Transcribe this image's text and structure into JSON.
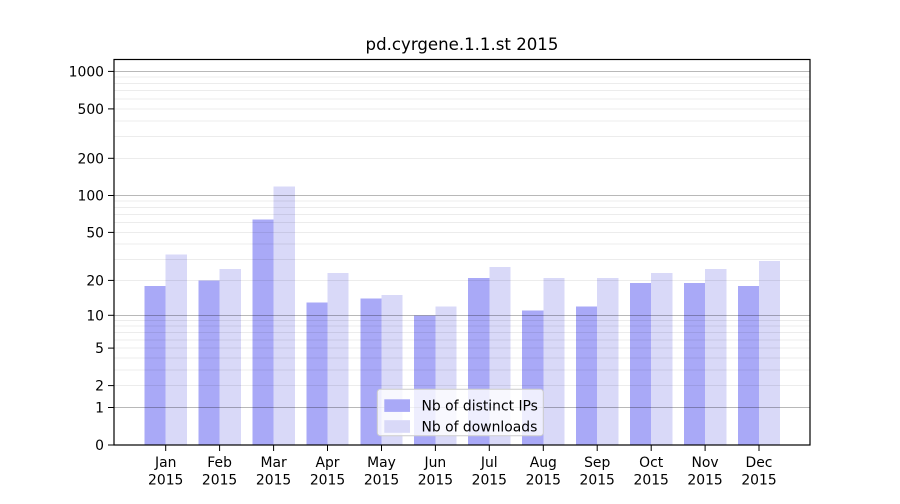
{
  "figure": {
    "background": "#ffffff"
  },
  "chart_data": {
    "type": "bar",
    "title": "pd.cyrgene.1.1.st 2015",
    "categories": [
      {
        "month": "Jan",
        "year": "2015"
      },
      {
        "month": "Feb",
        "year": "2015"
      },
      {
        "month": "Mar",
        "year": "2015"
      },
      {
        "month": "Apr",
        "year": "2015"
      },
      {
        "month": "May",
        "year": "2015"
      },
      {
        "month": "Jun",
        "year": "2015"
      },
      {
        "month": "Jul",
        "year": "2015"
      },
      {
        "month": "Aug",
        "year": "2015"
      },
      {
        "month": "Sep",
        "year": "2015"
      },
      {
        "month": "Oct",
        "year": "2015"
      },
      {
        "month": "Nov",
        "year": "2015"
      },
      {
        "month": "Dec",
        "year": "2015"
      }
    ],
    "series": [
      {
        "name": "Nb of distinct IPs",
        "color": "#a9a9f7",
        "values": [
          18,
          20,
          64,
          13,
          14,
          10,
          21,
          11,
          12,
          19,
          19,
          18
        ]
      },
      {
        "name": "Nb of downloads",
        "color": "#d9d9f8",
        "values": [
          33,
          25,
          118,
          23,
          15,
          12,
          26,
          21,
          21,
          23,
          25,
          29
        ]
      }
    ],
    "y_axis": {
      "scale": "log10(1+x)",
      "ticks": [
        0,
        1,
        2,
        5,
        10,
        20,
        50,
        100,
        200,
        500,
        1000
      ],
      "major_gridlines": [
        1,
        10,
        100,
        1000
      ],
      "ylim": [
        0,
        1300
      ]
    },
    "grid": {
      "horizontal": true,
      "minor": true,
      "vertical": false
    },
    "legend": {
      "position": "lower center"
    }
  }
}
